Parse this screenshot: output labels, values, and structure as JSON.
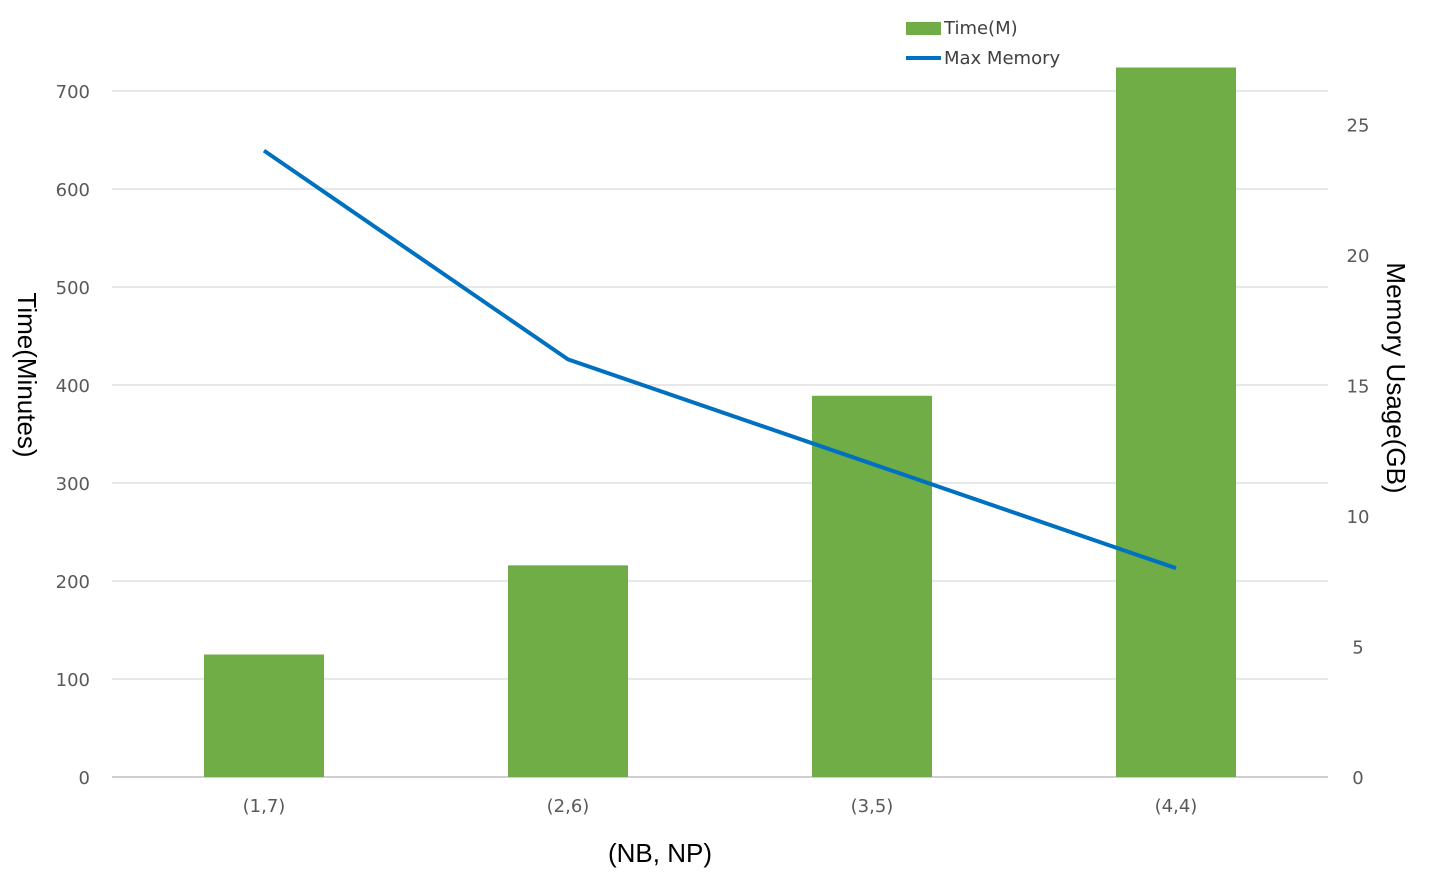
{
  "chart_data": {
    "type": "bar",
    "categories": [
      "(1,7)",
      "(2,6)",
      "(3,5)",
      "(4,4)"
    ],
    "series": [
      {
        "name": "Time(M)",
        "kind": "bar",
        "axis": "left",
        "color": "#70ad47",
        "values": [
          125,
          216,
          389,
          724
        ]
      },
      {
        "name": "Max Memory",
        "kind": "line",
        "axis": "right",
        "color": "#0070c0",
        "values": [
          24,
          16,
          12,
          8
        ]
      }
    ],
    "xlabel": "(NB, NP)",
    "ylabel": "Time(Minutes)",
    "y2label": "Memory Usage(GB)",
    "ylim": [
      0,
      700
    ],
    "y2lim": [
      0,
      25
    ],
    "yticks": [
      "0",
      "100",
      "200",
      "300",
      "400",
      "500",
      "600",
      "700"
    ],
    "y2ticks": [
      "0",
      "5",
      "10",
      "15",
      "20",
      "25"
    ],
    "grid": true,
    "legend": "top-right"
  }
}
